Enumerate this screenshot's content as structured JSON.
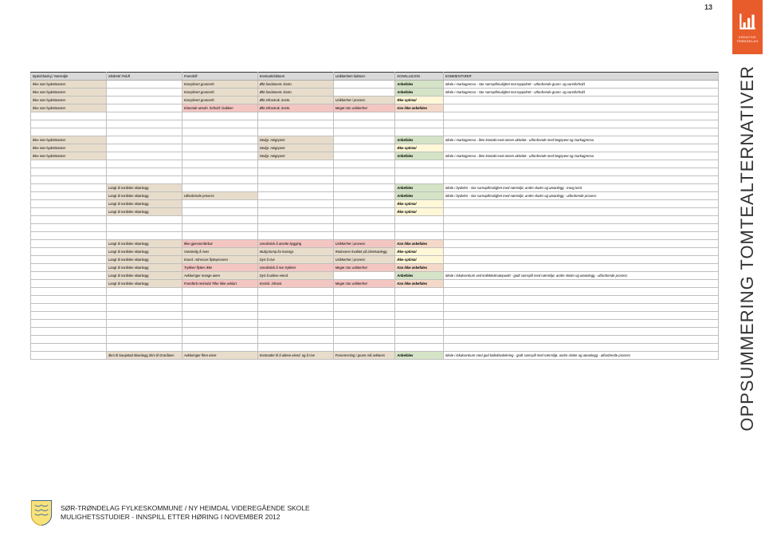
{
  "page_number": "13",
  "side_brand_sub": "TRØNDELAG",
  "side_brand_top": "KREATIVE",
  "side_title": "OPPSUMMERING TOMTEALTERNATIVER",
  "footer": {
    "line1": "SØR-TRØNDELAG FYLKESKOMMUNE / NY HEIMDAL VIDEREGÅENDE SKOLE",
    "line2": "MULIGHETSSTUDIER - INNSPILL ETTER HØRING I NOVEMBER 2012"
  },
  "headers": [
    "Bydelsfunksj./ Nærmiljø",
    "Skidrett/ Friluft",
    "Framdrift",
    "Kostnadsfaktorer",
    "Usikkerhets-faktorer",
    "KONKLUSJON",
    "KOMMENTARER"
  ],
  "colors": {
    "beige": "#e8dccb",
    "grey": "#d9d9d9",
    "pink": "#f4c6c2",
    "yellow": "#fff0b3",
    "lightyellow": "#fff8d8",
    "green": "#d5e3c6",
    "salmon": "#f5d9c8"
  },
  "rows": [
    {
      "cells": [
        {
          "t": "Ikke nær bydelssenter",
          "f": "beige"
        },
        {
          "t": "",
          "f": ""
        },
        {
          "t": "Komplisert grunnerh.",
          "f": "beige",
          "it": true
        },
        {
          "t": "Økt fundament. kostn.",
          "f": "beige",
          "it": true
        },
        {
          "t": "",
          "f": ""
        },
        {
          "t": "Anbefales",
          "f": "green",
          "it": true,
          "b": true
        },
        {
          "t": "Skole i markagrensa - stor samspillmulighet mot toppidrett - utfordrende grunn- og vannforhold",
          "f": "",
          "it": true
        }
      ]
    },
    {
      "cells": [
        {
          "t": "Ikke nær bydelssenter",
          "f": "beige"
        },
        {
          "t": "",
          "f": ""
        },
        {
          "t": "Komplisert grunnerh.",
          "f": "beige",
          "it": true
        },
        {
          "t": "Økt fundament. kostn.",
          "f": "beige",
          "it": true
        },
        {
          "t": "",
          "f": ""
        },
        {
          "t": "Anbefales",
          "f": "green",
          "it": true,
          "b": true
        },
        {
          "t": "Skole i markagrensa - stor samspillmulighet mot toppidrett - utfordrende grunn- og vannforhold",
          "f": "",
          "it": true
        }
      ]
    },
    {
      "cells": [
        {
          "t": "Ikke nær bydelssenter",
          "f": "beige"
        },
        {
          "t": "",
          "f": ""
        },
        {
          "t": "Komplisert grunnerh.",
          "f": "beige",
          "it": true
        },
        {
          "t": "Økt Infrastruk. kostn.",
          "f": "beige",
          "it": true
        },
        {
          "t": "Usikkerhet i prosess",
          "f": "beige",
          "it": true
        },
        {
          "t": "Ikke optimal",
          "f": "lyel",
          "it": true,
          "b": true
        },
        {
          "t": "",
          "f": ""
        }
      ]
    },
    {
      "cells": [
        {
          "t": "Ikke nær bydelssenter",
          "f": "beige"
        },
        {
          "t": "",
          "f": ""
        },
        {
          "t": "Klarende utredn. forhold i bakken",
          "f": "pink",
          "it": true
        },
        {
          "t": "Økt Infrastruk. kostn.",
          "f": "pink",
          "it": true
        },
        {
          "t": "Meget stor usikkerhet",
          "f": "pink",
          "it": true
        },
        {
          "t": "Kan ikke anbefales",
          "f": "sal",
          "it": true,
          "b": true
        },
        {
          "t": "",
          "f": ""
        }
      ]
    },
    {
      "empty": true
    },
    {
      "empty": true
    },
    {
      "empty": true
    },
    {
      "cells": [
        {
          "t": "Ikke nær bydelssenter",
          "f": "beige"
        },
        {
          "t": "",
          "f": ""
        },
        {
          "t": "",
          "f": ""
        },
        {
          "t": "Nedgr. Høgspent",
          "f": "beige",
          "it": true
        },
        {
          "t": "",
          "f": ""
        },
        {
          "t": "Anbefales",
          "f": "green",
          "it": true,
          "b": true
        },
        {
          "t": "Skole i markagrensa - liten kontakt med annen aktivitet - utfordrende med høgspent og markagrensa",
          "f": "",
          "it": true
        }
      ]
    },
    {
      "cells": [
        {
          "t": "Ikke nær bydelssenter",
          "f": "beige"
        },
        {
          "t": "",
          "f": ""
        },
        {
          "t": "",
          "f": ""
        },
        {
          "t": "Nedgr. Høgspent",
          "f": "beige",
          "it": true
        },
        {
          "t": "",
          "f": ""
        },
        {
          "t": "Ikke optimal",
          "f": "lyel",
          "it": true,
          "b": true
        },
        {
          "t": "",
          "f": ""
        }
      ]
    },
    {
      "cells": [
        {
          "t": "Ikke nær bydelssenter",
          "f": "beige"
        },
        {
          "t": "",
          "f": ""
        },
        {
          "t": "",
          "f": ""
        },
        {
          "t": "Nedgr. Høgspent",
          "f": "beige",
          "it": true
        },
        {
          "t": "",
          "f": ""
        },
        {
          "t": "Anbefales",
          "f": "green",
          "it": true,
          "b": true
        },
        {
          "t": "Skole i markagrensa - liten kontakt med annen aktivitet - utfordrende med høgspent og markagrensa",
          "f": "",
          "it": true
        }
      ]
    },
    {
      "empty": true
    },
    {
      "empty": true
    },
    {
      "empty": true
    },
    {
      "cells": [
        {
          "t": "",
          "f": ""
        },
        {
          "t": "Langt til nordiske skianlegg",
          "f": "beige"
        },
        {
          "t": "",
          "f": ""
        },
        {
          "t": "",
          "f": ""
        },
        {
          "t": "",
          "f": ""
        },
        {
          "t": "Anbefales",
          "f": "green",
          "it": true,
          "b": true
        },
        {
          "t": "Skole i bydelen - stor samspillmulighet med nærmiljø, andre skoler og uteanlegg - trang tomt",
          "f": "",
          "it": true
        }
      ]
    },
    {
      "cells": [
        {
          "t": "",
          "f": ""
        },
        {
          "t": "Langt til nordiske skianlegg",
          "f": "beige"
        },
        {
          "t": "Utfordrende prosess",
          "f": "beige",
          "it": true
        },
        {
          "t": "",
          "f": ""
        },
        {
          "t": "",
          "f": ""
        },
        {
          "t": "Anbefales",
          "f": "green",
          "it": true,
          "b": true
        },
        {
          "t": "Skole i bydelen - stor samspillmulighet med nærmiljø, andre skoler og uteanlegg - utfordrende prosess",
          "f": "",
          "it": true
        }
      ]
    },
    {
      "cells": [
        {
          "t": "",
          "f": ""
        },
        {
          "t": "Langt til nordiske skianlegg",
          "f": "beige"
        },
        {
          "t": "",
          "f": ""
        },
        {
          "t": "",
          "f": ""
        },
        {
          "t": "",
          "f": ""
        },
        {
          "t": "Ikke optimal",
          "f": "lyel",
          "it": true,
          "b": true
        },
        {
          "t": "",
          "f": ""
        }
      ]
    },
    {
      "cells": [
        {
          "t": "",
          "f": ""
        },
        {
          "t": "Langt til nordiske skianlegg",
          "f": "beige"
        },
        {
          "t": "",
          "f": ""
        },
        {
          "t": "",
          "f": ""
        },
        {
          "t": "",
          "f": ""
        },
        {
          "t": "Ikke optimal",
          "f": "lyel",
          "it": true,
          "b": true
        },
        {
          "t": "",
          "f": ""
        }
      ]
    },
    {
      "empty": true
    },
    {
      "empty": true
    },
    {
      "empty": true
    },
    {
      "cells": [
        {
          "t": "",
          "f": ""
        },
        {
          "t": "Langt til nordiske skianlegg",
          "f": "beige"
        },
        {
          "t": "Ikke gjennomførbar",
          "f": "pink",
          "it": true
        },
        {
          "t": "Urealistisk å utsette bygging",
          "f": "pink",
          "it": true
        },
        {
          "t": "Usikkerhet i prosess",
          "f": "pink",
          "it": true
        },
        {
          "t": "Kan ikke anbefales",
          "f": "sal",
          "it": true,
          "b": true
        },
        {
          "t": "",
          "f": ""
        }
      ]
    },
    {
      "cells": [
        {
          "t": "",
          "f": ""
        },
        {
          "t": "Langt til nordiske skianlegg",
          "f": "beige"
        },
        {
          "t": "Vanskelig å rives",
          "f": "beige",
          "it": true
        },
        {
          "t": "Mulig komp.for kunstgr.",
          "f": "beige",
          "it": true
        },
        {
          "t": "Reduserer kvalitet på idrettsanlegg",
          "f": "beige",
          "it": true
        },
        {
          "t": "Ikke optimal",
          "f": "lyel",
          "it": true,
          "b": true
        },
        {
          "t": "",
          "f": ""
        }
      ]
    },
    {
      "cells": [
        {
          "t": "",
          "f": ""
        },
        {
          "t": "Langt til nordiske skianlegg",
          "f": "beige"
        },
        {
          "t": "Koord. Adressas flytteprosess",
          "f": "beige",
          "it": true
        },
        {
          "t": "Dyrt å rive",
          "f": "beige",
          "it": true
        },
        {
          "t": "Usikkerhet i prosess",
          "f": "beige",
          "it": true
        },
        {
          "t": "Ikke optimal",
          "f": "lyel",
          "it": true,
          "b": true
        },
        {
          "t": "",
          "f": ""
        }
      ]
    },
    {
      "cells": [
        {
          "t": "",
          "f": ""
        },
        {
          "t": "Langt til nordiske skianlegg",
          "f": "beige"
        },
        {
          "t": "Trykkeri flyttes ikke",
          "f": "pink",
          "it": true
        },
        {
          "t": "Urealistisk å rive trykkeri",
          "f": "pink",
          "it": true
        },
        {
          "t": "Meget stor usikkerhet",
          "f": "pink",
          "it": true
        },
        {
          "t": "Kan ikke anbefales",
          "f": "sal",
          "it": true,
          "b": true
        },
        {
          "t": "",
          "f": ""
        }
      ]
    },
    {
      "cells": [
        {
          "t": "",
          "f": ""
        },
        {
          "t": "Langt til nordiske skianlegg",
          "f": "beige"
        },
        {
          "t": "Avklaringer mange aiere",
          "f": "beige",
          "it": true
        },
        {
          "t": "Dyrt å utløse eiend.",
          "f": "beige",
          "it": true
        },
        {
          "t": "",
          "f": ""
        },
        {
          "t": "Anbefales",
          "f": "green",
          "it": true,
          "b": true
        },
        {
          "t": "Skole i lokalsentrum ved kollektivknutepunkt - godt samspill med nærmiljø, andre skoler og uteanlegg - utfordrende prosess",
          "f": "",
          "it": true
        }
      ]
    },
    {
      "cells": [
        {
          "t": "",
          "f": ""
        },
        {
          "t": "Langt til nordiske skianlegg",
          "f": "beige"
        },
        {
          "t": "Framførb.Heimdal Tiller ikke avklart",
          "f": "pink",
          "it": true
        },
        {
          "t": "Kostsk. infrastr.",
          "f": "pink",
          "it": true
        },
        {
          "t": "Meget stor usikkerhet",
          "f": "pink",
          "it": true
        },
        {
          "t": "Kan ikke anbefales",
          "f": "sal",
          "it": true,
          "b": true
        },
        {
          "t": "",
          "f": ""
        }
      ]
    },
    {
      "empty": true
    },
    {
      "empty": true
    },
    {
      "empty": true
    },
    {
      "empty": true
    },
    {
      "empty": true
    },
    {
      "empty": true
    },
    {
      "empty": true
    },
    {
      "empty": true
    },
    {
      "cells": [
        {
          "t": "",
          "f": ""
        },
        {
          "t": "3km til Saupstad skianlegg  2km til Granåsen",
          "f": "beige"
        },
        {
          "t": "Avklaringer flere eiere",
          "f": "beige",
          "it": true
        },
        {
          "t": "Kostnader til å utløse eiend. og å rive",
          "f": "beige",
          "it": true
        },
        {
          "t": "Forurensning i grunn må avklares",
          "f": "beige",
          "it": true
        },
        {
          "t": "Anbefales",
          "f": "green",
          "it": true,
          "b": true
        },
        {
          "t": "Skole i lokalsentrum med god kollektivdekning - godt samspill med nærmiljø, andre skoler og uteanlegg - utfordrende prosess",
          "f": "",
          "it": true
        }
      ]
    }
  ]
}
